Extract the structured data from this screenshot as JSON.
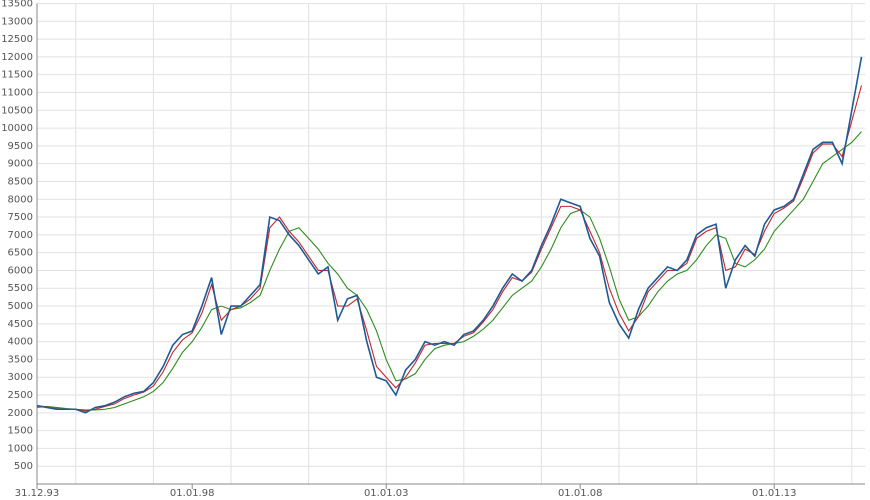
{
  "chart_data": {
    "type": "line",
    "x": [
      1994,
      1994.25,
      1994.5,
      1994.75,
      1995,
      1995.25,
      1995.5,
      1995.75,
      1996,
      1996.25,
      1996.5,
      1996.75,
      1997,
      1997.25,
      1997.5,
      1997.75,
      1998,
      1998.25,
      1998.5,
      1998.75,
      1999,
      1999.25,
      1999.5,
      1999.75,
      2000,
      2000.25,
      2000.5,
      2000.75,
      2001,
      2001.25,
      2001.5,
      2001.75,
      2002,
      2002.25,
      2002.5,
      2002.75,
      2003,
      2003.25,
      2003.5,
      2003.75,
      2004,
      2004.25,
      2004.5,
      2004.75,
      2005,
      2005.25,
      2005.5,
      2005.75,
      2006,
      2006.25,
      2006.5,
      2006.75,
      2007,
      2007.25,
      2007.5,
      2007.75,
      2008,
      2008.25,
      2008.5,
      2008.75,
      2009,
      2009.25,
      2009.5,
      2009.75,
      2010,
      2010.25,
      2010.5,
      2010.75,
      2011,
      2011.25,
      2011.5,
      2011.75,
      2012,
      2012.25,
      2012.5,
      2012.75,
      2013,
      2013.25,
      2013.5,
      2013.75,
      2014,
      2014.25,
      2014.5,
      2014.75,
      2015,
      2015.25
    ],
    "series": [
      {
        "color": "#1f5a96",
        "values": [
          2200,
          2150,
          2100,
          2100,
          2100,
          2000,
          2150,
          2200,
          2300,
          2450,
          2550,
          2600,
          2850,
          3300,
          3900,
          4200,
          4300,
          5000,
          5800,
          4200,
          5000,
          5000,
          5300,
          5600,
          7500,
          7400,
          7000,
          6700,
          6300,
          5900,
          6100,
          4600,
          5200,
          5300,
          4000,
          3000,
          2900,
          2500,
          3200,
          3500,
          4000,
          3900,
          4000,
          3900,
          4200,
          4300,
          4600,
          5000,
          5500,
          5900,
          5700,
          6000,
          6700,
          7300,
          8000,
          7900,
          7800,
          6900,
          6400,
          5100,
          4500,
          4100,
          4900,
          5500,
          5800,
          6100,
          6000,
          6300,
          7000,
          7200,
          7300,
          5500,
          6300,
          6700,
          6400,
          7300,
          7700,
          7800,
          8000,
          8700,
          9400,
          9600,
          9600,
          9000,
          10500,
          12000
        ]
      },
      {
        "color": "#c0282d",
        "values": [
          2200,
          2170,
          2120,
          2100,
          2100,
          2050,
          2100,
          2180,
          2250,
          2400,
          2500,
          2580,
          2750,
          3150,
          3700,
          4050,
          4250,
          4800,
          5600,
          4600,
          4900,
          5000,
          5200,
          5500,
          7200,
          7500,
          7100,
          6800,
          6400,
          6000,
          6000,
          5000,
          5000,
          5200,
          4300,
          3300,
          3000,
          2700,
          3000,
          3400,
          3900,
          3950,
          3950,
          3950,
          4150,
          4250,
          4550,
          4900,
          5400,
          5800,
          5700,
          5950,
          6600,
          7200,
          7800,
          7800,
          7700,
          7100,
          6500,
          5500,
          4800,
          4300,
          4700,
          5400,
          5700,
          6000,
          6000,
          6200,
          6900,
          7100,
          7200,
          6000,
          6100,
          6600,
          6450,
          7100,
          7600,
          7750,
          7950,
          8600,
          9300,
          9550,
          9550,
          9200,
          10200,
          11200
        ]
      },
      {
        "color": "#2e8b1e",
        "values": [
          2150,
          2180,
          2150,
          2120,
          2100,
          2080,
          2080,
          2100,
          2150,
          2250,
          2350,
          2450,
          2600,
          2850,
          3250,
          3700,
          4000,
          4400,
          4900,
          5000,
          4900,
          4950,
          5100,
          5300,
          6000,
          6600,
          7100,
          7200,
          6900,
          6600,
          6200,
          5900,
          5500,
          5300,
          4900,
          4300,
          3500,
          2900,
          2950,
          3100,
          3500,
          3800,
          3900,
          3950,
          4000,
          4150,
          4350,
          4600,
          4950,
          5300,
          5500,
          5700,
          6100,
          6600,
          7200,
          7600,
          7700,
          7500,
          6900,
          6100,
          5200,
          4600,
          4700,
          5000,
          5400,
          5700,
          5900,
          6000,
          6300,
          6700,
          7000,
          6900,
          6200,
          6100,
          6300,
          6600,
          7100,
          7400,
          7700,
          8000,
          8500,
          9000,
          9200,
          9400,
          9600,
          9900
        ]
      }
    ],
    "xlim": [
      1994,
      2015.34
    ],
    "xticks": [
      {
        "value": 1994,
        "label": "31.12.93"
      },
      {
        "value": 1998,
        "label": "01.01.98"
      },
      {
        "value": 2003,
        "label": "01.01.03"
      },
      {
        "value": 2008,
        "label": "01.01.08"
      },
      {
        "value": 2013,
        "label": "01.01.13"
      }
    ],
    "xgrid": [
      1995,
      1997,
      1999,
      2001,
      2003,
      2005,
      2007,
      2009,
      2011,
      2013,
      2015
    ],
    "ylim": [
      0,
      13500
    ],
    "yticks": [
      500,
      1000,
      1500,
      2000,
      2500,
      3000,
      3500,
      4000,
      4500,
      5000,
      5500,
      6000,
      6500,
      7000,
      7500,
      8000,
      8500,
      9000,
      9500,
      10000,
      10500,
      11000,
      11500,
      12000,
      12500,
      13000,
      13500
    ],
    "grid": true
  }
}
